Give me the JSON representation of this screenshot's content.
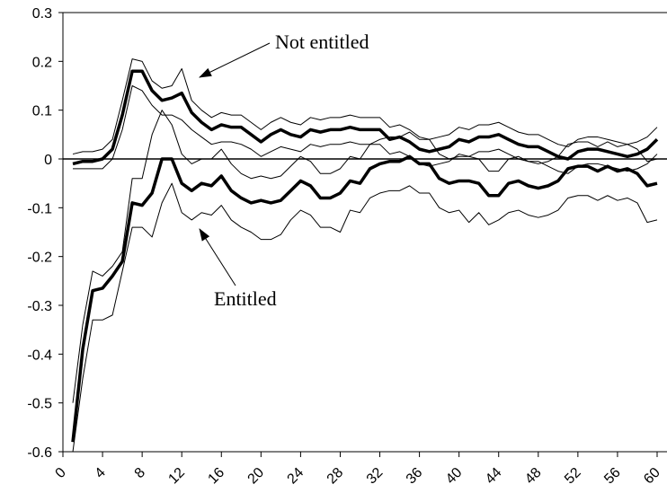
{
  "chart_data": {
    "type": "line",
    "x": [
      1,
      2,
      3,
      4,
      5,
      6,
      7,
      8,
      9,
      10,
      11,
      12,
      13,
      14,
      15,
      16,
      17,
      18,
      19,
      20,
      21,
      22,
      23,
      24,
      25,
      26,
      27,
      28,
      29,
      30,
      31,
      32,
      33,
      34,
      35,
      36,
      37,
      38,
      39,
      40,
      41,
      42,
      43,
      44,
      45,
      46,
      47,
      48,
      49,
      50,
      51,
      52,
      53,
      54,
      55,
      56,
      57,
      58,
      59,
      60
    ],
    "series": [
      {
        "color": "#000000",
        "line_width": 3.5,
        "values": [
          -0.01,
          -0.005,
          -0.005,
          0,
          0.02,
          0.09,
          0.18,
          0.18,
          0.14,
          0.12,
          0.125,
          0.135,
          0.095,
          0.075,
          0.06,
          0.07,
          0.065,
          0.065,
          0.05,
          0.035,
          0.05,
          0.06,
          0.05,
          0.045,
          0.06,
          0.055,
          0.06,
          0.06,
          0.065,
          0.06,
          0.06,
          0.06,
          0.04,
          0.045,
          0.035,
          0.02,
          0.015,
          0.02,
          0.025,
          0.04,
          0.035,
          0.045,
          0.045,
          0.05,
          0.04,
          0.03,
          0.025,
          0.025,
          0.015,
          0.005,
          0,
          0.015,
          0.02,
          0.02,
          0.015,
          0.01,
          0.005,
          0.01,
          0.02,
          0.04
        ]
      },
      {
        "color": "#000000",
        "line_width": 1,
        "values": [
          0.01,
          0.015,
          0.015,
          0.02,
          0.04,
          0.12,
          0.205,
          0.2,
          0.16,
          0.145,
          0.15,
          0.185,
          0.12,
          0.1,
          0.085,
          0.095,
          0.09,
          0.09,
          0.075,
          0.06,
          0.075,
          0.085,
          0.075,
          0.07,
          0.085,
          0.08,
          0.085,
          0.085,
          0.09,
          0.085,
          0.085,
          0.085,
          0.065,
          0.07,
          0.06,
          0.045,
          0.04,
          0.045,
          0.05,
          0.065,
          0.06,
          0.07,
          0.07,
          0.075,
          0.065,
          0.055,
          0.05,
          0.05,
          0.04,
          0.03,
          0.025,
          0.04,
          0.045,
          0.045,
          0.04,
          0.035,
          0.03,
          0.035,
          0.045,
          0.065
        ]
      },
      {
        "color": "#000000",
        "line_width": 1,
        "values": [
          -0.02,
          -0.02,
          -0.02,
          -0.02,
          0,
          0.06,
          0.15,
          0.14,
          0.11,
          0.09,
          0.09,
          0.08,
          0.06,
          0.045,
          0.03,
          0.035,
          0.035,
          0.03,
          0.02,
          0.005,
          0.015,
          0.025,
          0.02,
          0.015,
          0.03,
          0.025,
          0.03,
          0.03,
          0.035,
          0.03,
          0.03,
          0.03,
          0.01,
          0.015,
          0.005,
          -0.01,
          -0.015,
          -0.01,
          -0.005,
          0.01,
          0.005,
          0.015,
          0.015,
          0.02,
          0.01,
          0,
          -0.005,
          -0.005,
          -0.015,
          -0.025,
          -0.03,
          -0.015,
          -0.01,
          -0.01,
          -0.015,
          -0.02,
          -0.025,
          -0.02,
          -0.01,
          0.01
        ]
      },
      {
        "color": "#000000",
        "line_width": 3.5,
        "values": [
          -0.58,
          -0.39,
          -0.27,
          -0.265,
          -0.24,
          -0.21,
          -0.09,
          -0.095,
          -0.07,
          0,
          0,
          -0.05,
          -0.065,
          -0.05,
          -0.055,
          -0.035,
          -0.065,
          -0.08,
          -0.09,
          -0.085,
          -0.09,
          -0.085,
          -0.065,
          -0.045,
          -0.055,
          -0.08,
          -0.08,
          -0.07,
          -0.045,
          -0.05,
          -0.02,
          -0.01,
          -0.005,
          -0.005,
          0.005,
          -0.01,
          -0.01,
          -0.04,
          -0.05,
          -0.045,
          -0.045,
          -0.05,
          -0.075,
          -0.075,
          -0.05,
          -0.045,
          -0.055,
          -0.06,
          -0.055,
          -0.045,
          -0.02,
          -0.015,
          -0.015,
          -0.025,
          -0.015,
          -0.025,
          -0.02,
          -0.03,
          -0.055,
          -0.05
        ]
      },
      {
        "color": "#000000",
        "line_width": 1,
        "values": [
          -0.5,
          -0.34,
          -0.23,
          -0.24,
          -0.22,
          -0.19,
          -0.04,
          -0.04,
          0.05,
          0.1,
          0.07,
          0.01,
          -0.01,
          0,
          0,
          0.02,
          -0.01,
          -0.03,
          -0.04,
          -0.035,
          -0.04,
          -0.035,
          -0.015,
          0.005,
          -0.005,
          -0.03,
          -0.03,
          -0.02,
          0.005,
          0,
          0.03,
          0.04,
          0.045,
          0.045,
          0.055,
          0.04,
          0.04,
          0.01,
          0,
          0.005,
          0.005,
          0,
          -0.025,
          -0.025,
          0,
          0.005,
          -0.005,
          -0.01,
          -0.005,
          0.005,
          0.03,
          0.035,
          0.035,
          0.025,
          0.035,
          0.025,
          0.03,
          0.02,
          -0.005,
          0
        ]
      },
      {
        "color": "#000000",
        "line_width": 1,
        "values": [
          -0.6,
          -0.45,
          -0.33,
          -0.33,
          -0.32,
          -0.23,
          -0.14,
          -0.14,
          -0.16,
          -0.09,
          -0.05,
          -0.11,
          -0.125,
          -0.11,
          -0.115,
          -0.095,
          -0.125,
          -0.14,
          -0.15,
          -0.165,
          -0.165,
          -0.155,
          -0.125,
          -0.105,
          -0.115,
          -0.14,
          -0.14,
          -0.15,
          -0.105,
          -0.11,
          -0.08,
          -0.07,
          -0.065,
          -0.065,
          -0.055,
          -0.07,
          -0.07,
          -0.1,
          -0.11,
          -0.105,
          -0.13,
          -0.11,
          -0.135,
          -0.125,
          -0.11,
          -0.105,
          -0.115,
          -0.12,
          -0.115,
          -0.105,
          -0.08,
          -0.075,
          -0.075,
          -0.085,
          -0.075,
          -0.085,
          -0.08,
          -0.09,
          -0.13,
          -0.125
        ]
      }
    ],
    "xlim": [
      0,
      60
    ],
    "xticks": [
      0,
      4,
      8,
      12,
      16,
      20,
      24,
      28,
      32,
      36,
      40,
      44,
      48,
      52,
      56,
      60
    ],
    "ylim": [
      -0.6,
      0.3
    ],
    "yticks": [
      -0.6,
      -0.5,
      -0.4,
      -0.3,
      -0.2,
      -0.1,
      0,
      0.1,
      0.2,
      0.3
    ],
    "annotations": [
      {
        "text": "Not entitled"
      },
      {
        "text": "Entitled"
      }
    ]
  }
}
